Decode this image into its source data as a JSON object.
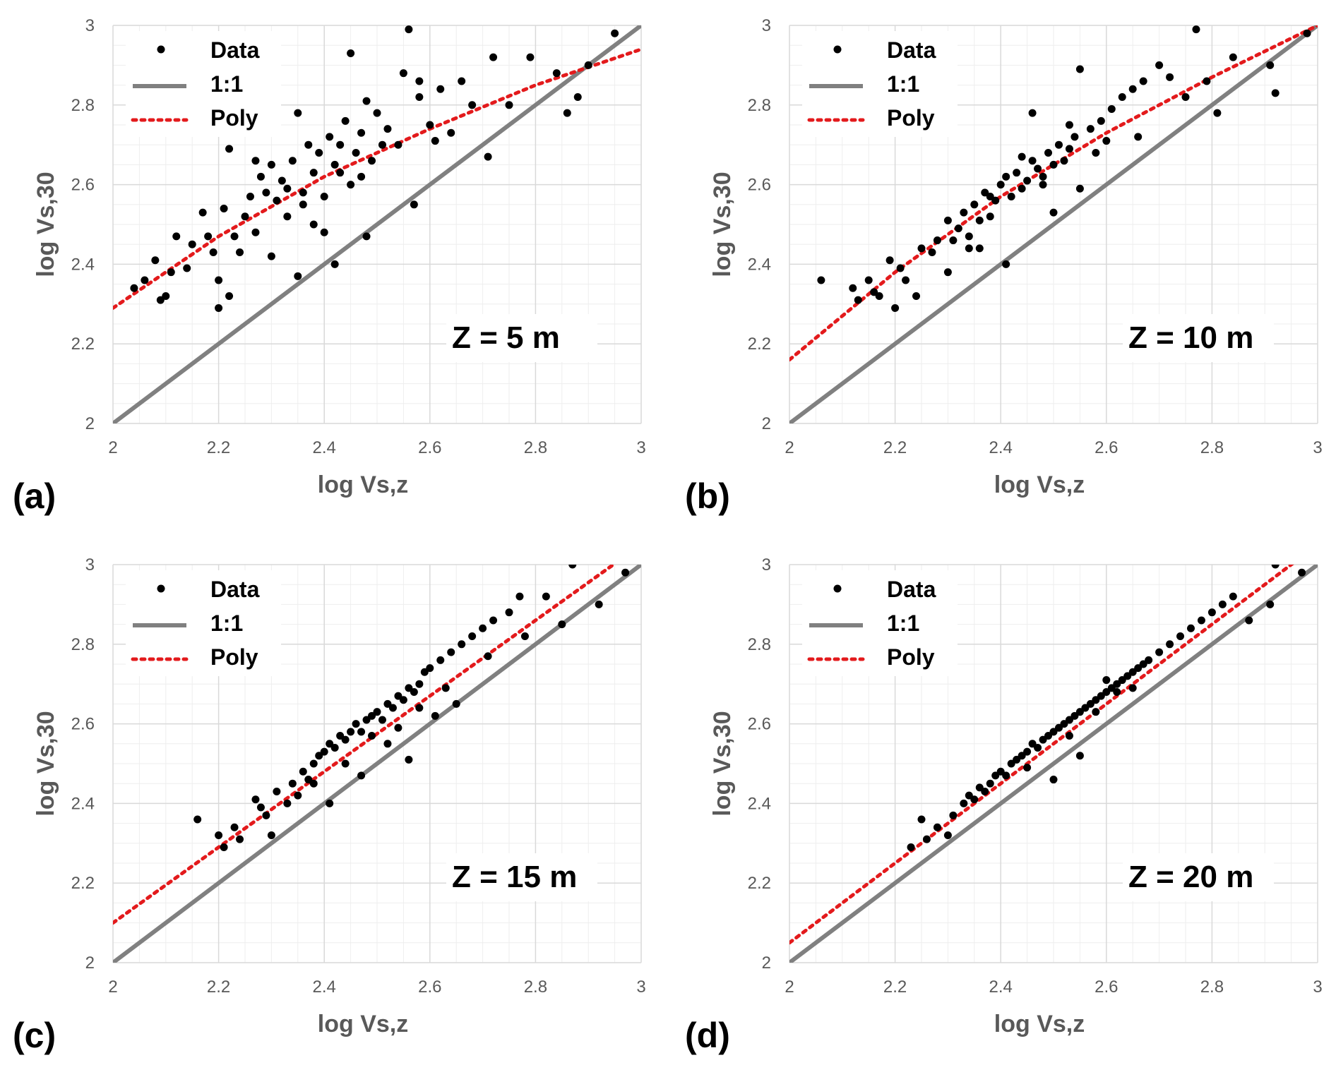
{
  "figure": {
    "common": {
      "xlabel": "log Vs,z",
      "ylabel": "log Vs,30",
      "xlim": [
        2,
        3
      ],
      "ylim": [
        2,
        3
      ],
      "x_ticks": [
        "2",
        "2.2",
        "2.4",
        "2.6",
        "2.8",
        "3"
      ],
      "y_ticks": [
        "2",
        "2.2",
        "2.4",
        "2.6",
        "2.8",
        "3"
      ],
      "legend": [
        "Data",
        "1:1",
        "Poly"
      ],
      "legend_position": "top-left",
      "grid": "major and minor",
      "colors": {
        "data": "#000000",
        "one_to_one": "#808080",
        "poly": "#e31a1c",
        "grid_major": "#d9d9d9",
        "grid_minor": "#eeeeee",
        "tick_text": "#595959"
      }
    }
  },
  "chart_data": [
    {
      "type": "scatter",
      "panel": "(a)",
      "annotation": "Z = 5 m",
      "xlabel": "log Vs,z",
      "ylabel": "log Vs,30",
      "xlim": [
        2,
        3
      ],
      "ylim": [
        2,
        3
      ],
      "series": [
        {
          "name": "Data",
          "kind": "points",
          "x": [
            2.04,
            2.06,
            2.08,
            2.09,
            2.1,
            2.11,
            2.12,
            2.14,
            2.15,
            2.17,
            2.18,
            2.19,
            2.2,
            2.21,
            2.22,
            2.23,
            2.24,
            2.25,
            2.26,
            2.27,
            2.28,
            2.29,
            2.3,
            2.31,
            2.32,
            2.33,
            2.34,
            2.35,
            2.36,
            2.37,
            2.38,
            2.39,
            2.4,
            2.41,
            2.42,
            2.43,
            2.44,
            2.45,
            2.46,
            2.47,
            2.48,
            2.49,
            2.5,
            2.52,
            2.54,
            2.56,
            2.57,
            2.58,
            2.6,
            2.62,
            2.64,
            2.66,
            2.68,
            2.71,
            2.72,
            2.75,
            2.79,
            2.84,
            2.86,
            2.88,
            2.9,
            2.95,
            2.45,
            2.42,
            2.35,
            2.3,
            2.22,
            2.2,
            2.55,
            2.58,
            2.48,
            2.38,
            2.27,
            2.33,
            2.43,
            2.36,
            2.51,
            2.61,
            2.47,
            2.4
          ],
          "y": [
            2.34,
            2.36,
            2.41,
            2.31,
            2.32,
            2.38,
            2.47,
            2.39,
            2.45,
            2.53,
            2.47,
            2.43,
            2.29,
            2.54,
            2.69,
            2.47,
            2.43,
            2.52,
            2.57,
            2.48,
            2.62,
            2.58,
            2.65,
            2.56,
            2.61,
            2.52,
            2.66,
            2.78,
            2.58,
            2.7,
            2.63,
            2.68,
            2.57,
            2.72,
            2.65,
            2.7,
            2.76,
            2.93,
            2.68,
            2.73,
            2.81,
            2.66,
            2.78,
            2.74,
            2.7,
            2.99,
            2.55,
            2.82,
            2.75,
            2.84,
            2.73,
            2.86,
            2.8,
            2.67,
            2.92,
            2.8,
            2.92,
            2.88,
            2.78,
            2.82,
            2.9,
            2.98,
            2.6,
            2.4,
            2.37,
            2.42,
            2.32,
            2.36,
            2.88,
            2.86,
            2.47,
            2.5,
            2.66,
            2.59,
            2.63,
            2.55,
            2.7,
            2.71,
            2.62,
            2.48
          ]
        },
        {
          "name": "1:1",
          "kind": "line",
          "x": [
            2,
            3
          ],
          "y": [
            2,
            3
          ]
        },
        {
          "name": "Poly",
          "kind": "dotted-curve",
          "x": [
            2.0,
            2.2,
            2.4,
            2.6,
            2.8,
            3.0
          ],
          "y": [
            2.29,
            2.47,
            2.62,
            2.74,
            2.85,
            2.94
          ]
        }
      ]
    },
    {
      "type": "scatter",
      "panel": "(b)",
      "annotation": "Z = 10 m",
      "xlabel": "log Vs,z",
      "ylabel": "log Vs,30",
      "xlim": [
        2,
        3
      ],
      "ylim": [
        2,
        3
      ],
      "series": [
        {
          "name": "Data",
          "kind": "points",
          "x": [
            2.06,
            2.12,
            2.13,
            2.15,
            2.16,
            2.17,
            2.19,
            2.2,
            2.21,
            2.22,
            2.24,
            2.25,
            2.27,
            2.28,
            2.3,
            2.31,
            2.32,
            2.33,
            2.34,
            2.35,
            2.36,
            2.37,
            2.38,
            2.39,
            2.4,
            2.41,
            2.42,
            2.43,
            2.44,
            2.45,
            2.46,
            2.47,
            2.48,
            2.49,
            2.5,
            2.51,
            2.52,
            2.53,
            2.54,
            2.55,
            2.57,
            2.59,
            2.61,
            2.63,
            2.65,
            2.67,
            2.7,
            2.72,
            2.75,
            2.77,
            2.79,
            2.81,
            2.84,
            2.91,
            2.92,
            2.98,
            2.41,
            2.46,
            2.36,
            2.3,
            2.5,
            2.55,
            2.6,
            2.44,
            2.38,
            2.48,
            2.53,
            2.66,
            2.58,
            2.34
          ],
          "y": [
            2.36,
            2.34,
            2.31,
            2.36,
            2.33,
            2.32,
            2.41,
            2.29,
            2.39,
            2.36,
            2.32,
            2.44,
            2.43,
            2.46,
            2.51,
            2.46,
            2.49,
            2.53,
            2.47,
            2.55,
            2.51,
            2.58,
            2.52,
            2.56,
            2.6,
            2.62,
            2.57,
            2.63,
            2.59,
            2.61,
            2.66,
            2.64,
            2.6,
            2.68,
            2.65,
            2.7,
            2.66,
            2.69,
            2.72,
            2.89,
            2.74,
            2.76,
            2.79,
            2.82,
            2.84,
            2.86,
            2.9,
            2.87,
            2.82,
            2.99,
            2.86,
            2.78,
            2.92,
            2.9,
            2.83,
            2.98,
            2.4,
            2.78,
            2.44,
            2.38,
            2.53,
            2.59,
            2.71,
            2.67,
            2.57,
            2.62,
            2.75,
            2.72,
            2.68,
            2.44
          ]
        },
        {
          "name": "1:1",
          "kind": "line",
          "x": [
            2,
            3
          ],
          "y": [
            2,
            3
          ]
        },
        {
          "name": "Poly",
          "kind": "dotted-curve",
          "x": [
            2.0,
            2.2,
            2.4,
            2.6,
            2.8,
            3.0
          ],
          "y": [
            2.16,
            2.38,
            2.57,
            2.73,
            2.87,
            3.0
          ]
        }
      ]
    },
    {
      "type": "scatter",
      "panel": "(c)",
      "annotation": "Z = 15 m",
      "xlabel": "log Vs,z",
      "ylabel": "log Vs,30",
      "xlim": [
        2,
        3
      ],
      "ylim": [
        2,
        3
      ],
      "series": [
        {
          "name": "Data",
          "kind": "points",
          "x": [
            2.16,
            2.2,
            2.21,
            2.23,
            2.24,
            2.27,
            2.28,
            2.29,
            2.3,
            2.31,
            2.33,
            2.34,
            2.35,
            2.36,
            2.37,
            2.38,
            2.39,
            2.4,
            2.41,
            2.42,
            2.43,
            2.44,
            2.45,
            2.46,
            2.47,
            2.48,
            2.49,
            2.5,
            2.51,
            2.52,
            2.53,
            2.54,
            2.55,
            2.56,
            2.57,
            2.58,
            2.59,
            2.6,
            2.62,
            2.64,
            2.66,
            2.68,
            2.7,
            2.72,
            2.75,
            2.77,
            2.78,
            2.82,
            2.85,
            2.87,
            2.92,
            2.97,
            2.41,
            2.47,
            2.56,
            2.61,
            2.65,
            2.52,
            2.44,
            2.38,
            2.49,
            2.58,
            2.54,
            2.63,
            2.71
          ],
          "y": [
            2.36,
            2.32,
            2.29,
            2.34,
            2.31,
            2.41,
            2.39,
            2.37,
            2.32,
            2.43,
            2.4,
            2.45,
            2.42,
            2.48,
            2.46,
            2.5,
            2.52,
            2.53,
            2.55,
            2.54,
            2.57,
            2.56,
            2.58,
            2.6,
            2.58,
            2.61,
            2.62,
            2.63,
            2.61,
            2.65,
            2.64,
            2.67,
            2.66,
            2.69,
            2.68,
            2.7,
            2.73,
            2.74,
            2.76,
            2.78,
            2.8,
            2.82,
            2.84,
            2.86,
            2.88,
            2.92,
            2.82,
            2.92,
            2.85,
            3.0,
            2.9,
            2.98,
            2.4,
            2.47,
            2.51,
            2.62,
            2.65,
            2.55,
            2.5,
            2.45,
            2.57,
            2.64,
            2.59,
            2.69,
            2.77
          ]
        },
        {
          "name": "1:1",
          "kind": "line",
          "x": [
            2,
            3
          ],
          "y": [
            2,
            3
          ]
        },
        {
          "name": "Poly",
          "kind": "dotted-curve",
          "x": [
            2.0,
            2.2,
            2.4,
            2.6,
            2.8,
            3.0
          ],
          "y": [
            2.1,
            2.29,
            2.48,
            2.67,
            2.86,
            3.05
          ]
        }
      ]
    },
    {
      "type": "scatter",
      "panel": "(d)",
      "annotation": "Z = 20 m",
      "xlabel": "log Vs,z",
      "ylabel": "log Vs,30",
      "xlim": [
        2,
        3
      ],
      "ylim": [
        2,
        3
      ],
      "series": [
        {
          "name": "Data",
          "kind": "points",
          "x": [
            2.23,
            2.25,
            2.26,
            2.28,
            2.3,
            2.31,
            2.33,
            2.34,
            2.35,
            2.36,
            2.37,
            2.38,
            2.39,
            2.4,
            2.41,
            2.42,
            2.43,
            2.44,
            2.45,
            2.46,
            2.47,
            2.48,
            2.49,
            2.5,
            2.51,
            2.52,
            2.53,
            2.54,
            2.55,
            2.56,
            2.57,
            2.58,
            2.59,
            2.6,
            2.61,
            2.62,
            2.63,
            2.64,
            2.65,
            2.66,
            2.67,
            2.68,
            2.7,
            2.72,
            2.74,
            2.76,
            2.78,
            2.8,
            2.82,
            2.84,
            2.87,
            2.91,
            2.92,
            2.97,
            2.5,
            2.55,
            2.6,
            2.45,
            2.65,
            2.53,
            2.58,
            2.62
          ],
          "y": [
            2.29,
            2.36,
            2.31,
            2.34,
            2.32,
            2.37,
            2.4,
            2.42,
            2.41,
            2.44,
            2.43,
            2.45,
            2.47,
            2.48,
            2.47,
            2.5,
            2.51,
            2.52,
            2.53,
            2.55,
            2.54,
            2.56,
            2.57,
            2.58,
            2.59,
            2.6,
            2.61,
            2.62,
            2.63,
            2.64,
            2.65,
            2.66,
            2.67,
            2.68,
            2.69,
            2.7,
            2.71,
            2.72,
            2.73,
            2.74,
            2.75,
            2.76,
            2.78,
            2.8,
            2.82,
            2.84,
            2.86,
            2.88,
            2.9,
            2.92,
            2.86,
            2.9,
            3.0,
            2.98,
            2.46,
            2.52,
            2.71,
            2.49,
            2.69,
            2.57,
            2.63,
            2.68
          ]
        },
        {
          "name": "1:1",
          "kind": "line",
          "x": [
            2,
            3
          ],
          "y": [
            2,
            3
          ]
        },
        {
          "name": "Poly",
          "kind": "dotted-curve",
          "x": [
            2.0,
            2.2,
            2.4,
            2.6,
            2.8,
            3.0
          ],
          "y": [
            2.05,
            2.25,
            2.45,
            2.65,
            2.85,
            3.05
          ]
        }
      ]
    }
  ]
}
